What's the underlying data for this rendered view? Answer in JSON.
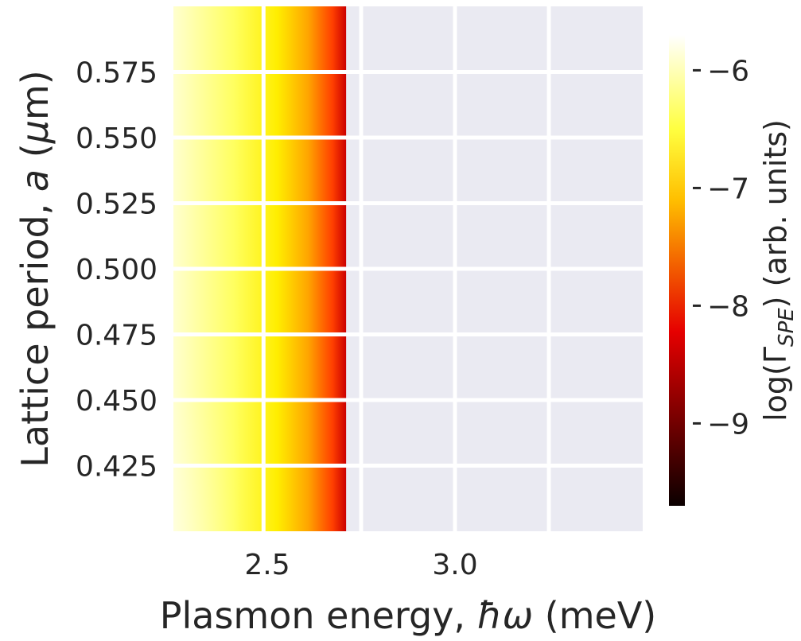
{
  "chart_data": {
    "type": "heatmap",
    "title": "",
    "xlabel": "Plasmon energy, ",
    "xlabel_symbol": "ħω",
    "xlabel_unit": " (meV)",
    "ylabel": "Lattice period, ",
    "ylabel_symbol": "a",
    "ylabel_unit_open": " (",
    "ylabel_unit_symbol": "μ",
    "ylabel_unit_close": "m)",
    "x_ticks": [
      2.5,
      3.0
    ],
    "x_tick_labels": [
      "2.5",
      "3.0"
    ],
    "xlim": [
      2.25,
      3.5
    ],
    "x_data_max": 2.71,
    "y_ticks": [
      0.425,
      0.45,
      0.475,
      0.5,
      0.525,
      0.55,
      0.575
    ],
    "y_tick_labels": [
      "0.425",
      "0.450",
      "0.475",
      "0.500",
      "0.525",
      "0.550",
      "0.575"
    ],
    "ylim": [
      0.4,
      0.6
    ],
    "gridlines_x": [
      2.49,
      2.75,
      3.0,
      3.25
    ],
    "gridlines_y": [
      0.425,
      0.45,
      0.475,
      0.5,
      0.525,
      0.55,
      0.575
    ],
    "grid": true,
    "colormap": "hot",
    "colorbar": {
      "label_prefix": "log(Γ",
      "label_sub": "SPE",
      "label_suffix": ") (arb. units)",
      "range": [
        -9.7,
        -5.7
      ],
      "ticks": [
        -9,
        -8,
        -7,
        -6
      ],
      "tick_labels": [
        "−9",
        "−8",
        "−7",
        "−6"
      ]
    },
    "z_description_values": {
      "x_samples": [
        2.25,
        2.4,
        2.49,
        2.6,
        2.65,
        2.7,
        2.71
      ],
      "z_at_top_row": [
        -6.2,
        -6.5,
        -6.7,
        -6.9,
        -7.3,
        -8.0,
        -8.9
      ],
      "z_at_bottom_row": [
        -5.8,
        -6.2,
        -6.6,
        -6.9,
        -7.3,
        -8.0,
        -8.9
      ]
    },
    "facecolor": "#eaeaf2",
    "grid_color": "#ffffff"
  }
}
